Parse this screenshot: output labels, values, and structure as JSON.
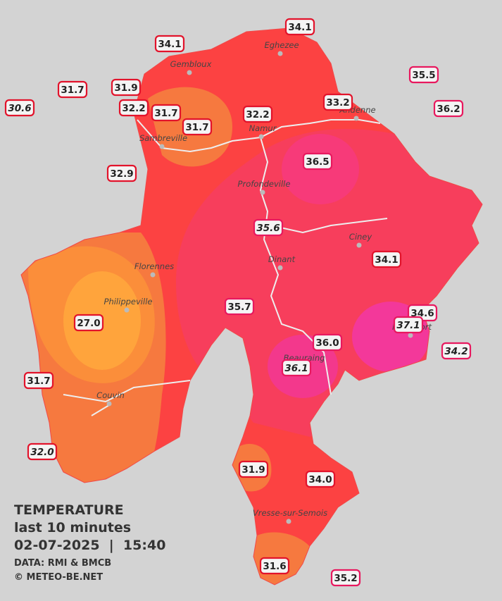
{
  "title": "TEMPERATURE",
  "subtitle": "last 10 minutes",
  "timestamp": "02-07-2025  |  15:40",
  "source": "DATA: RMI & BMCB",
  "credit": "© METEO-BE.NET",
  "cities": [
    "Eghezee",
    "Gembloux",
    "Namur",
    "Andenne",
    "Sambreville",
    "Profondeville",
    "Ciney",
    "Dinant",
    "Florennes",
    "Philippeville",
    "Rochefort",
    "Beauraing",
    "Couvin",
    "Vresse-sur-Semois"
  ],
  "stations": [
    "34.1",
    "34.1",
    "35.5",
    "31.7",
    "31.9",
    "30.6",
    "32.2",
    "31.7",
    "33.2",
    "36.2",
    "32.2",
    "31.7",
    "32.9",
    "36.5",
    "35.6",
    "34.1",
    "35.7",
    "34.6",
    "27.0",
    "37.1",
    "36.0",
    "34.2",
    "36.1",
    "31.7",
    "32.0",
    "31.9",
    "34.0",
    "31.6",
    "35.2"
  ]
}
